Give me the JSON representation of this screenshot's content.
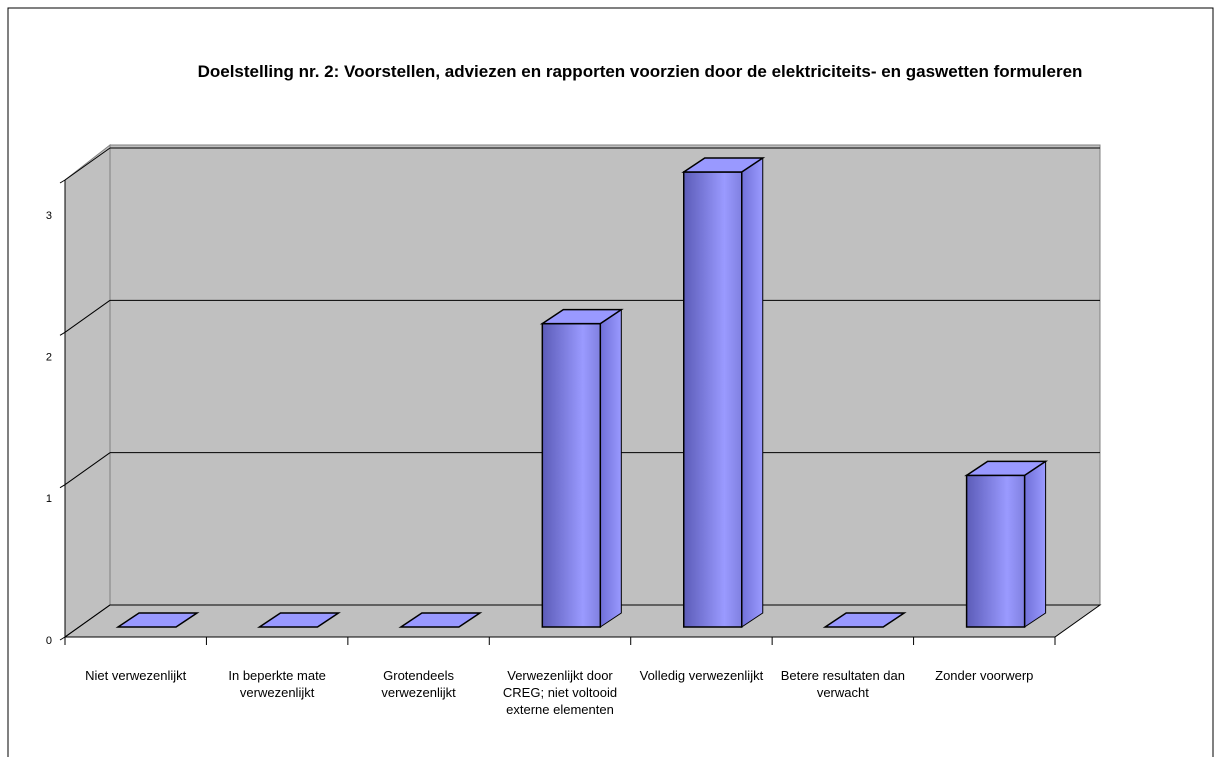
{
  "chart_data": {
    "type": "bar",
    "title": "Doelstelling nr. 2: Voorstellen, adviezen en rapporten voorzien door de elektriciteits- en gaswetten formuleren",
    "categories": [
      "Niet verwezenlijkt",
      "In beperkte mate verwezenlijkt",
      "Grotendeels verwezenlijkt",
      "Verwezenlijkt door CREG; niet voltooid externe elementen",
      "Volledig verwezenlijkt",
      "Betere resultaten dan verwacht",
      "Zonder voorwerp"
    ],
    "values": [
      0,
      0,
      0,
      2,
      3,
      0,
      1
    ],
    "color": "#9999ff",
    "ylim": [
      0,
      3
    ],
    "yticks": [
      0,
      1,
      2,
      3
    ],
    "grid": true
  }
}
